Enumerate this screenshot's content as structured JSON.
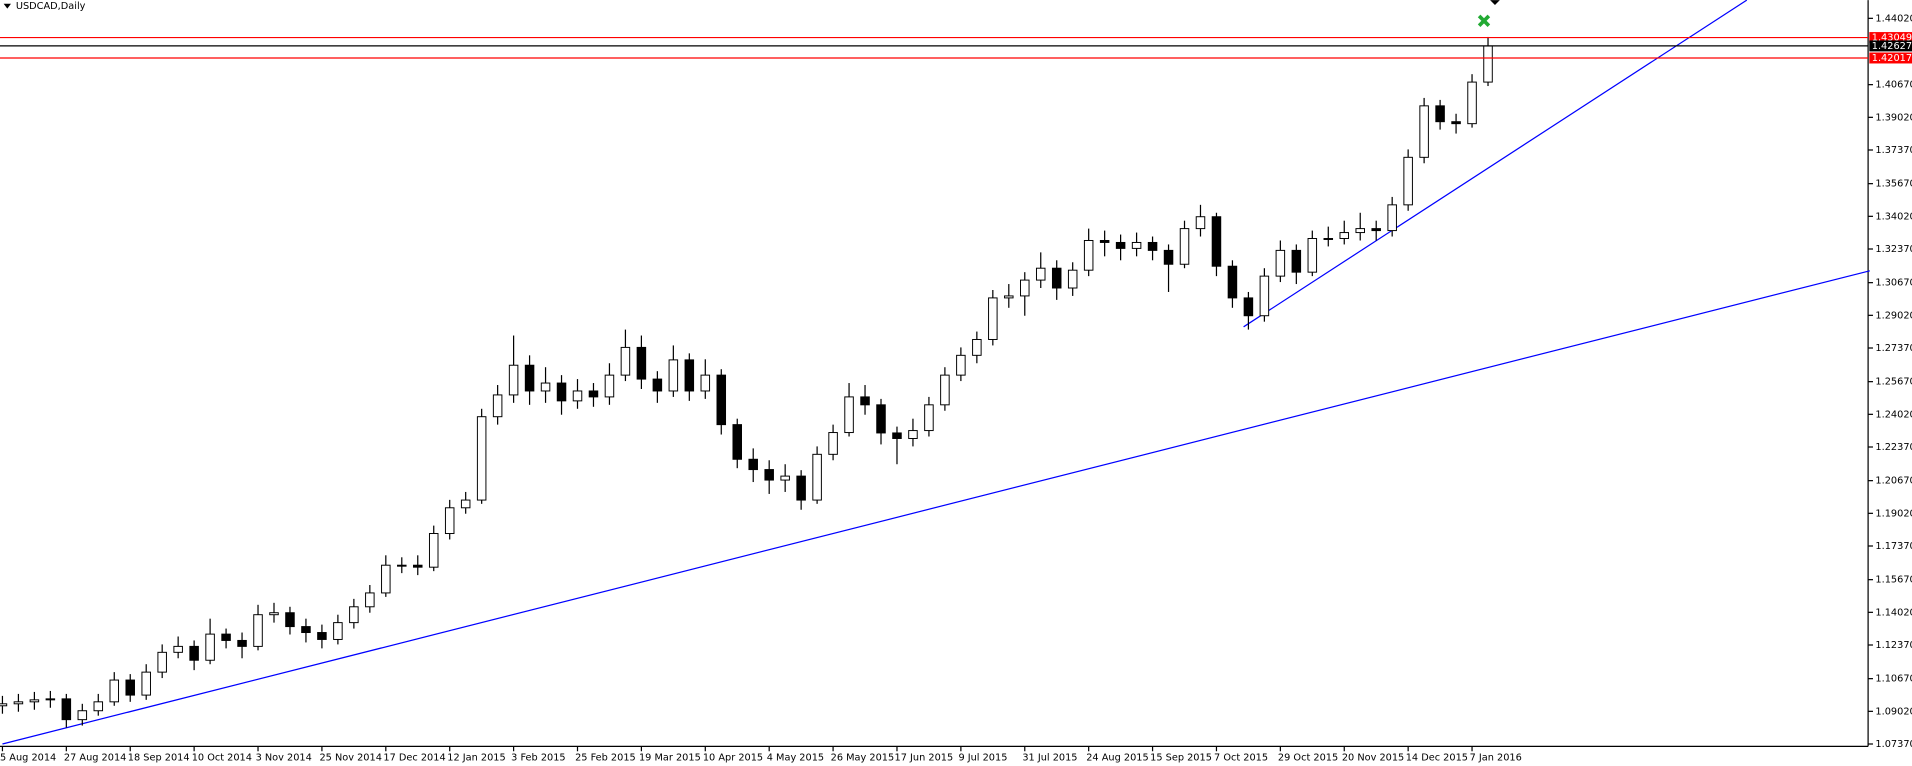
{
  "chart_data": {
    "type": "candlestick",
    "title": "USDCAD,Daily",
    "categories": [
      "5 Aug 2014",
      null,
      null,
      null,
      "27 Aug 2014",
      null,
      null,
      null,
      "18 Sep 2014",
      null,
      null,
      null,
      "10 Oct 2014",
      null,
      null,
      null,
      "3 Nov 2014",
      null,
      null,
      null,
      "25 Nov 2014",
      null,
      null,
      null,
      "17 Dec 2014",
      null,
      null,
      null,
      "12 Jan 2015",
      null,
      null,
      null,
      "3 Feb 2015",
      null,
      null,
      null,
      "25 Feb 2015",
      null,
      null,
      null,
      "19 Mar 2015",
      null,
      null,
      null,
      "10 Apr 2015",
      null,
      null,
      null,
      "4 May 2015",
      null,
      null,
      null,
      "26 May 2015",
      null,
      null,
      null,
      "17 Jun 2015",
      null,
      null,
      null,
      "9 Jul 2015",
      null,
      null,
      null,
      "31 Jul 2015",
      null,
      null,
      null,
      "24 Aug 2015",
      null,
      null,
      null,
      "15 Sep 2015",
      null,
      null,
      null,
      "7 Oct 2015",
      null,
      null,
      null,
      "29 Oct 2015",
      null,
      null,
      null,
      "20 Nov 2015",
      null,
      null,
      null,
      "14 Dec 2015",
      null,
      null,
      null,
      "7 Jan 2016",
      null
    ],
    "open": [
      1.093,
      1.094,
      1.095,
      1.096,
      1.0965,
      1.086,
      1.0905,
      1.095,
      1.106,
      1.0984,
      1.11,
      1.12,
      1.123,
      1.116,
      1.1292,
      1.126,
      1.123,
      1.139,
      1.14,
      1.133,
      1.13,
      1.1265,
      1.135,
      1.143,
      1.15,
      1.164,
      1.164,
      1.163,
      1.18,
      1.193,
      1.1969,
      1.239,
      1.25,
      1.265,
      1.252,
      1.256,
      1.247,
      1.252,
      1.249,
      1.26,
      1.274,
      1.258,
      1.252,
      1.2677,
      1.252,
      1.26,
      1.235,
      1.2175,
      1.2123,
      1.207,
      1.209,
      1.1969,
      1.22,
      1.231,
      1.249,
      1.245,
      1.2308,
      1.228,
      1.232,
      1.245,
      1.26,
      1.27,
      1.278,
      1.299,
      1.3,
      1.308,
      1.314,
      1.304,
      1.313,
      1.328,
      1.327,
      1.324,
      1.327,
      1.323,
      1.316,
      1.334,
      1.34,
      1.315,
      1.299,
      1.29,
      1.31,
      1.323,
      1.312,
      1.329,
      1.329,
      1.332,
      1.334,
      1.333,
      1.346,
      1.37,
      1.396,
      1.388,
      1.387,
      1.408
    ],
    "high": [
      1.098,
      1.099,
      1.1,
      1.1005,
      1.099,
      1.094,
      1.099,
      1.11,
      1.109,
      1.114,
      1.124,
      1.128,
      1.126,
      1.137,
      1.132,
      1.13,
      1.144,
      1.145,
      1.143,
      1.137,
      1.134,
      1.139,
      1.147,
      1.154,
      1.169,
      1.168,
      1.169,
      1.184,
      1.197,
      1.201,
      1.243,
      1.255,
      1.28,
      1.27,
      1.264,
      1.26,
      1.258,
      1.256,
      1.266,
      1.283,
      1.28,
      1.262,
      1.275,
      1.271,
      1.268,
      1.263,
      1.238,
      1.223,
      1.217,
      1.215,
      1.212,
      1.224,
      1.235,
      1.256,
      1.255,
      1.248,
      1.234,
      1.238,
      1.249,
      1.264,
      1.274,
      1.282,
      1.303,
      1.306,
      1.312,
      1.322,
      1.318,
      1.317,
      1.334,
      1.333,
      1.331,
      1.332,
      1.33,
      1.326,
      1.338,
      1.346,
      1.342,
      1.318,
      1.302,
      1.314,
      1.328,
      1.326,
      1.333,
      1.335,
      1.338,
      1.342,
      1.338,
      1.35,
      1.374,
      1.4,
      1.399,
      1.392,
      1.412,
      1.4308
    ],
    "low": [
      1.089,
      1.09,
      1.091,
      1.092,
      1.082,
      1.083,
      1.088,
      1.093,
      1.095,
      1.096,
      1.107,
      1.117,
      1.111,
      1.114,
      1.122,
      1.117,
      1.121,
      1.135,
      1.129,
      1.125,
      1.122,
      1.124,
      1.132,
      1.14,
      1.148,
      1.16,
      1.159,
      1.161,
      1.177,
      1.19,
      1.195,
      1.235,
      1.246,
      1.245,
      1.246,
      1.24,
      1.243,
      1.244,
      1.245,
      1.257,
      1.253,
      1.246,
      1.249,
      1.247,
      1.248,
      1.23,
      1.213,
      1.206,
      1.2,
      1.201,
      1.192,
      1.195,
      1.217,
      1.229,
      1.24,
      1.225,
      1.215,
      1.224,
      1.229,
      1.242,
      1.257,
      1.266,
      1.275,
      1.294,
      1.29,
      1.304,
      1.298,
      1.3,
      1.31,
      1.32,
      1.318,
      1.32,
      1.318,
      1.302,
      1.314,
      1.33,
      1.31,
      1.294,
      1.283,
      1.287,
      1.307,
      1.306,
      1.31,
      1.325,
      1.326,
      1.328,
      1.328,
      1.33,
      1.343,
      1.367,
      1.384,
      1.382,
      1.385,
      1.406
    ],
    "close": [
      1.094,
      1.095,
      1.096,
      1.0965,
      1.086,
      1.0905,
      1.095,
      1.106,
      1.0984,
      1.11,
      1.12,
      1.123,
      1.116,
      1.1292,
      1.126,
      1.123,
      1.139,
      1.14,
      1.133,
      1.13,
      1.1265,
      1.135,
      1.143,
      1.15,
      1.164,
      1.164,
      1.163,
      1.18,
      1.193,
      1.1969,
      1.239,
      1.25,
      1.265,
      1.252,
      1.256,
      1.247,
      1.252,
      1.249,
      1.26,
      1.274,
      1.258,
      1.252,
      1.2677,
      1.252,
      1.26,
      1.235,
      1.2175,
      1.2123,
      1.207,
      1.209,
      1.1969,
      1.22,
      1.231,
      1.249,
      1.245,
      1.2308,
      1.228,
      1.232,
      1.245,
      1.26,
      1.27,
      1.278,
      1.299,
      1.3,
      1.308,
      1.314,
      1.304,
      1.313,
      1.328,
      1.327,
      1.324,
      1.327,
      1.323,
      1.316,
      1.334,
      1.34,
      1.315,
      1.299,
      1.29,
      1.31,
      1.323,
      1.312,
      1.329,
      1.329,
      1.332,
      1.334,
      1.333,
      1.346,
      1.37,
      1.396,
      1.388,
      1.387,
      1.408,
      1.4262
    ],
    "colors": {
      "bull": "#ffffff",
      "bear": "#000000",
      "wick": "#000000"
    },
    "ylim": [
      1.0725,
      1.4494
    ],
    "yticks": [
      {
        "value": 1.4402,
        "label": "1.44020"
      },
      {
        "value": 1.4067,
        "label": "1.40670"
      },
      {
        "value": 1.3902,
        "label": "1.39020"
      },
      {
        "value": 1.3737,
        "label": "1.37370"
      },
      {
        "value": 1.3567,
        "label": "1.35670"
      },
      {
        "value": 1.3402,
        "label": "1.34020"
      },
      {
        "value": 1.3237,
        "label": "1.32370"
      },
      {
        "value": 1.3067,
        "label": "1.30670"
      },
      {
        "value": 1.2902,
        "label": "1.29020"
      },
      {
        "value": 1.2737,
        "label": "1.27370"
      },
      {
        "value": 1.2567,
        "label": "1.25670"
      },
      {
        "value": 1.2402,
        "label": "1.24020"
      },
      {
        "value": 1.2237,
        "label": "1.22370"
      },
      {
        "value": 1.2067,
        "label": "1.20670"
      },
      {
        "value": 1.1902,
        "label": "1.19020"
      },
      {
        "value": 1.1737,
        "label": "1.17370"
      },
      {
        "value": 1.1567,
        "label": "1.15670"
      },
      {
        "value": 1.1402,
        "label": "1.14020"
      },
      {
        "value": 1.1237,
        "label": "1.12370"
      },
      {
        "value": 1.1067,
        "label": "1.10670"
      },
      {
        "value": 1.0902,
        "label": "1.09020"
      },
      {
        "value": 1.0737,
        "label": "1.07370"
      }
    ],
    "levels": [
      {
        "value": 1.43049,
        "color": "#ff0000"
      },
      {
        "value": 1.42627,
        "color": "#000000"
      },
      {
        "value": 1.42017,
        "color": "#ff0000"
      }
    ],
    "trendlines": [
      {
        "x": [
          0,
          116.9
        ],
        "y": [
          1.0737,
          1.3127
        ],
        "color": "#0000ff"
      },
      {
        "x": [
          77.7,
          109.2
        ],
        "y": [
          1.2844,
          1.4494
        ],
        "color": "#0000ff"
      }
    ]
  }
}
